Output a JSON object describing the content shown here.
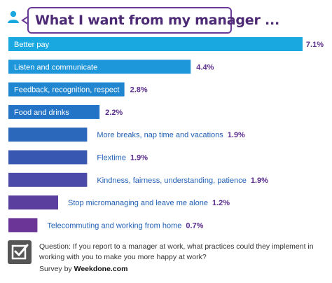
{
  "title": "What I want from my manager ...",
  "colors": {
    "title_purple": "#4d2a74",
    "label_text": "#1f5fb4",
    "value_text": "#5a2d8c",
    "icon_gray": "#555555",
    "user_icon_blue": "#1aa8e0",
    "bar_gradient": [
      "#1aa8e0",
      "#1e96da",
      "#2086cf",
      "#2374c7",
      "#2b67bb",
      "#3857b0",
      "#4b4aa8",
      "#5b3f9f",
      "#6a3596"
    ]
  },
  "chart_data": {
    "type": "bar",
    "orientation": "horizontal",
    "title": "What I want from my manager ...",
    "categories": [
      "Better pay",
      "Listen and communicate",
      "Feedback, recognition, respect",
      "Food and drinks",
      "More breaks, nap time and vacations",
      "Flextime",
      "Kindness, fairness, understanding, patience",
      "Stop micromanaging and leave me alone",
      "Telecommuting and working from home"
    ],
    "values": [
      7.1,
      4.4,
      2.8,
      2.2,
      1.9,
      1.9,
      1.9,
      1.2,
      0.7
    ],
    "value_labels": [
      "7.1%",
      "4.4%",
      "2.8%",
      "2.2%",
      "1.9%",
      "1.9%",
      "1.9%",
      "1.2%",
      "0.7%"
    ],
    "label_inside_bar": [
      true,
      true,
      true,
      true,
      false,
      false,
      false,
      false,
      false
    ]
  },
  "footer": {
    "question": "Question: If you report to a manager at work, what practices could they implement in working with you to make you more happy at work?",
    "survey_prefix": "Survey by",
    "survey_brand": "Weekdone.com"
  },
  "icons": {
    "user": "user-icon",
    "checkbox": "checkbox-icon"
  }
}
